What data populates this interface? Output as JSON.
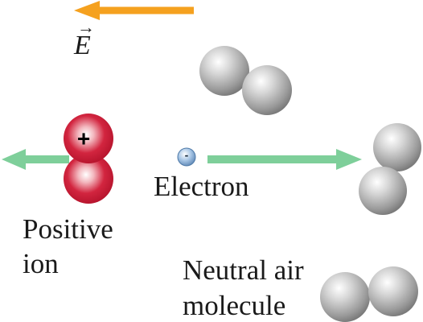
{
  "field": {
    "symbol": "E",
    "vector_mark": "→",
    "arrow_color": "#f5a11f"
  },
  "ion": {
    "sign": "+",
    "label_line1": "Positive",
    "label_line2": "ion",
    "color": "#c8102e",
    "force_arrow_color": "#7ecf9a"
  },
  "electron": {
    "sign": "-",
    "label": "Electron",
    "color": "#8fb5dc",
    "velocity_arrow_color": "#7ecf9a"
  },
  "molecule": {
    "label_line1": "Neutral air",
    "label_line2": "molecule",
    "color": "#a9a9a9"
  },
  "icons": [
    "field-arrow-icon",
    "positive-ion-icon",
    "electron-icon",
    "neutral-molecule-icon"
  ]
}
